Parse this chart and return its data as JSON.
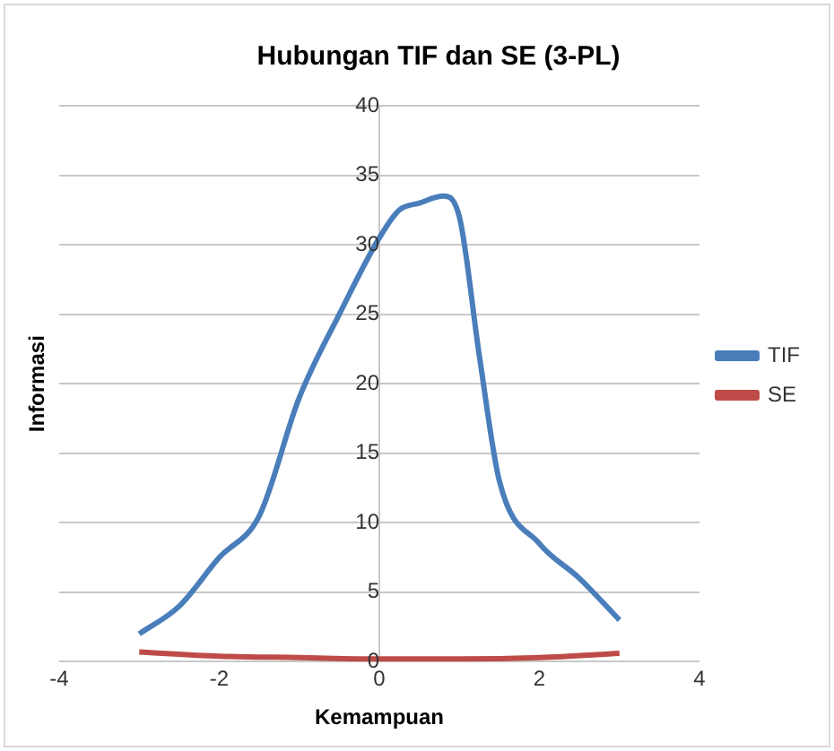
{
  "chart_data": {
    "type": "line",
    "title": "Hubungan TIF dan SE (3-PL)",
    "xlabel": "Kemampuan",
    "ylabel": "Informasi",
    "xlim": [
      -4,
      4
    ],
    "xticks": [
      -4,
      -2,
      0,
      2,
      4
    ],
    "ylim": [
      0,
      40
    ],
    "yticks": [
      0,
      5,
      10,
      15,
      20,
      25,
      30,
      35,
      40
    ],
    "grid": "y",
    "legend": "right",
    "marker": "none",
    "series": [
      {
        "name": "TIF",
        "color": "#4a7ebb",
        "x": [
          -3,
          -2.5,
          -2,
          -1.5,
          -1,
          -0.5,
          0,
          0.25,
          0.5,
          0.8,
          1,
          1.25,
          1.5,
          2,
          2.5,
          3
        ],
        "values": [
          2,
          4,
          7.5,
          10.5,
          19,
          25,
          30.5,
          32.5,
          33,
          33.5,
          32,
          22,
          13,
          8.5,
          6,
          3
        ]
      },
      {
        "name": "SE",
        "color": "#be4b48",
        "x": [
          -3,
          -2,
          -1,
          0,
          1,
          2,
          3
        ],
        "values": [
          0.7,
          0.4,
          0.3,
          0.2,
          0.2,
          0.3,
          0.6
        ]
      }
    ]
  }
}
